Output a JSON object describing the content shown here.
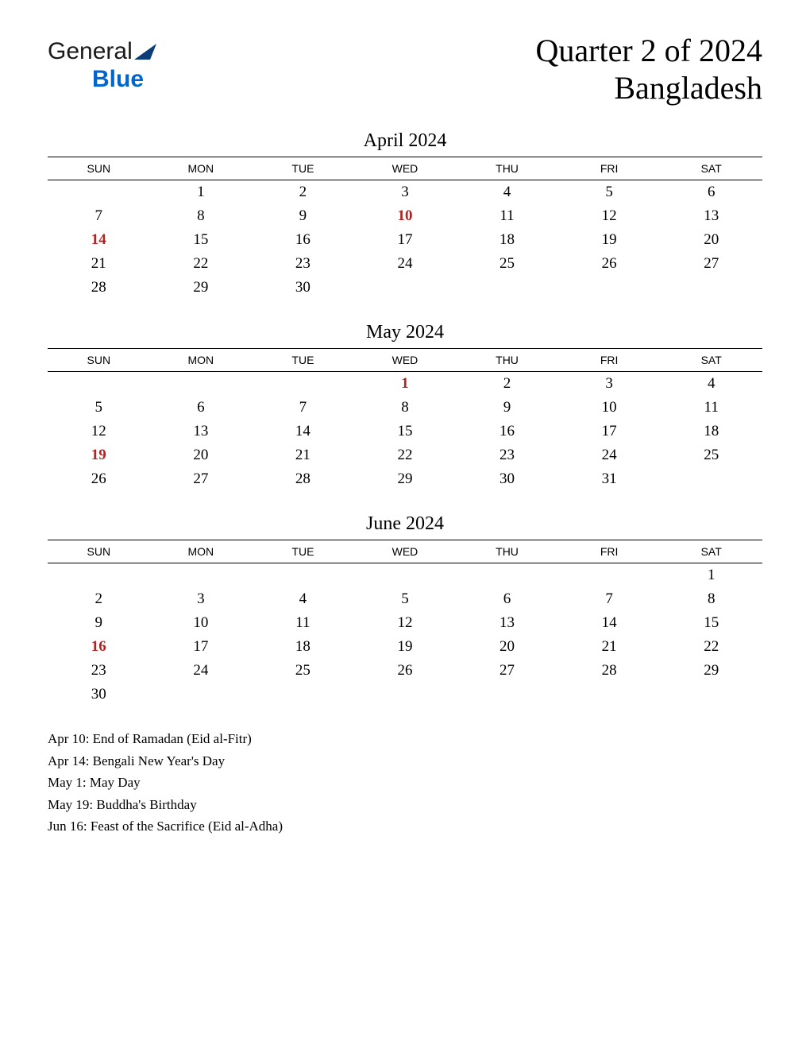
{
  "logo": {
    "text1": "General",
    "text2": "Blue"
  },
  "title": {
    "line1": "Quarter 2 of 2024",
    "line2": "Bangladesh"
  },
  "dayHeaders": [
    "SUN",
    "MON",
    "TUE",
    "WED",
    "THU",
    "FRI",
    "SAT"
  ],
  "colors": {
    "holiday": "#b22222",
    "text": "#000000",
    "logoBlue": "#0066cc",
    "background": "#ffffff"
  },
  "months": [
    {
      "title": "April 2024",
      "weeks": [
        [
          {
            "d": ""
          },
          {
            "d": "1"
          },
          {
            "d": "2"
          },
          {
            "d": "3"
          },
          {
            "d": "4"
          },
          {
            "d": "5"
          },
          {
            "d": "6"
          }
        ],
        [
          {
            "d": "7"
          },
          {
            "d": "8"
          },
          {
            "d": "9"
          },
          {
            "d": "10",
            "h": true
          },
          {
            "d": "11"
          },
          {
            "d": "12"
          },
          {
            "d": "13"
          }
        ],
        [
          {
            "d": "14",
            "h": true
          },
          {
            "d": "15"
          },
          {
            "d": "16"
          },
          {
            "d": "17"
          },
          {
            "d": "18"
          },
          {
            "d": "19"
          },
          {
            "d": "20"
          }
        ],
        [
          {
            "d": "21"
          },
          {
            "d": "22"
          },
          {
            "d": "23"
          },
          {
            "d": "24"
          },
          {
            "d": "25"
          },
          {
            "d": "26"
          },
          {
            "d": "27"
          }
        ],
        [
          {
            "d": "28"
          },
          {
            "d": "29"
          },
          {
            "d": "30"
          },
          {
            "d": ""
          },
          {
            "d": ""
          },
          {
            "d": ""
          },
          {
            "d": ""
          }
        ]
      ]
    },
    {
      "title": "May 2024",
      "weeks": [
        [
          {
            "d": ""
          },
          {
            "d": ""
          },
          {
            "d": ""
          },
          {
            "d": "1",
            "h": true
          },
          {
            "d": "2"
          },
          {
            "d": "3"
          },
          {
            "d": "4"
          }
        ],
        [
          {
            "d": "5"
          },
          {
            "d": "6"
          },
          {
            "d": "7"
          },
          {
            "d": "8"
          },
          {
            "d": "9"
          },
          {
            "d": "10"
          },
          {
            "d": "11"
          }
        ],
        [
          {
            "d": "12"
          },
          {
            "d": "13"
          },
          {
            "d": "14"
          },
          {
            "d": "15"
          },
          {
            "d": "16"
          },
          {
            "d": "17"
          },
          {
            "d": "18"
          }
        ],
        [
          {
            "d": "19",
            "h": true
          },
          {
            "d": "20"
          },
          {
            "d": "21"
          },
          {
            "d": "22"
          },
          {
            "d": "23"
          },
          {
            "d": "24"
          },
          {
            "d": "25"
          }
        ],
        [
          {
            "d": "26"
          },
          {
            "d": "27"
          },
          {
            "d": "28"
          },
          {
            "d": "29"
          },
          {
            "d": "30"
          },
          {
            "d": "31"
          },
          {
            "d": ""
          }
        ]
      ]
    },
    {
      "title": "June 2024",
      "weeks": [
        [
          {
            "d": ""
          },
          {
            "d": ""
          },
          {
            "d": ""
          },
          {
            "d": ""
          },
          {
            "d": ""
          },
          {
            "d": ""
          },
          {
            "d": "1"
          }
        ],
        [
          {
            "d": "2"
          },
          {
            "d": "3"
          },
          {
            "d": "4"
          },
          {
            "d": "5"
          },
          {
            "d": "6"
          },
          {
            "d": "7"
          },
          {
            "d": "8"
          }
        ],
        [
          {
            "d": "9"
          },
          {
            "d": "10"
          },
          {
            "d": "11"
          },
          {
            "d": "12"
          },
          {
            "d": "13"
          },
          {
            "d": "14"
          },
          {
            "d": "15"
          }
        ],
        [
          {
            "d": "16",
            "h": true
          },
          {
            "d": "17"
          },
          {
            "d": "18"
          },
          {
            "d": "19"
          },
          {
            "d": "20"
          },
          {
            "d": "21"
          },
          {
            "d": "22"
          }
        ],
        [
          {
            "d": "23"
          },
          {
            "d": "24"
          },
          {
            "d": "25"
          },
          {
            "d": "26"
          },
          {
            "d": "27"
          },
          {
            "d": "28"
          },
          {
            "d": "29"
          }
        ],
        [
          {
            "d": "30"
          },
          {
            "d": ""
          },
          {
            "d": ""
          },
          {
            "d": ""
          },
          {
            "d": ""
          },
          {
            "d": ""
          },
          {
            "d": ""
          }
        ]
      ]
    }
  ],
  "holidays": [
    "Apr 10: End of Ramadan (Eid al-Fitr)",
    "Apr 14: Bengali New Year's Day",
    "May 1: May Day",
    "May 19: Buddha's Birthday",
    "Jun 16: Feast of the Sacrifice (Eid al-Adha)"
  ]
}
